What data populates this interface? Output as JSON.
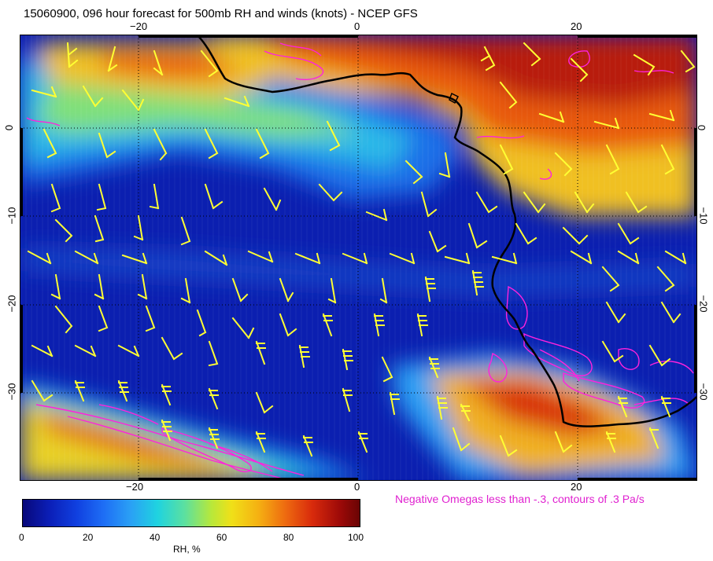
{
  "title": "15060900, 096 hour forecast for 500mb RH and winds (knots) - NCEP GFS",
  "map": {
    "lon_range": [
      -30,
      31
    ],
    "lat_range": [
      -40,
      10
    ],
    "x_ticks": [
      "−20",
      "0",
      "20"
    ],
    "y_ticks": [
      "0",
      "−10",
      "−20",
      "−30"
    ],
    "grid": "dotted",
    "barb_color": "#ffff33",
    "omega_color": "#ff22dd",
    "coast_color": "#000000"
  },
  "omega_note": "Negative Omegas less than -.3, contours of .3 Pa/s",
  "colorbar": {
    "ticks": [
      "0",
      "20",
      "40",
      "60",
      "80",
      "100"
    ],
    "label": "RH, %"
  }
}
